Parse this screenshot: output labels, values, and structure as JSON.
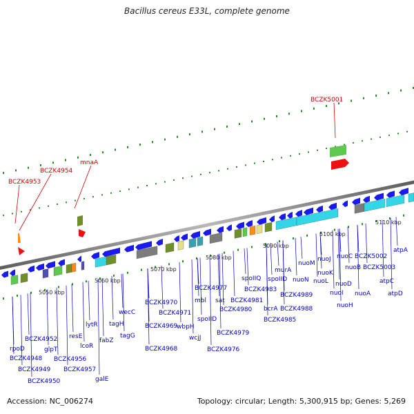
{
  "title": "Bacillus cereus E33L, complete genome",
  "footer": {
    "accession": "Accession: NC_006274",
    "meta": "Topology: circular; Length: 5,300,915 bp; Genes: 5,269"
  },
  "colors": {
    "backbone": "#8a8a8a",
    "ruler": "#228b22",
    "label_blue": "#0000cc",
    "label_red": "#cc0000",
    "gene_blue": "#1a1aee",
    "gene_cyan": "#33d6e6",
    "gene_green": "#5ec850",
    "gene_olive": "#6e8f2a",
    "gene_gray": "#7c7c7c",
    "gene_red": "#ee1111",
    "gene_orange": "#ff8c10",
    "gene_khaki": "#e4e08a",
    "gene_teal": "#3aa0b0",
    "gene_purple": "#5050b0"
  },
  "ruler": [
    "5050 kbp",
    "5060 kbp",
    "5070 kbp",
    "5080 kbp",
    "5090 kbp",
    "5100 kbp",
    "5110 kbp"
  ],
  "fwd_labels": [
    "BCZK4953",
    "BCZK4954",
    "mnaA",
    "BCZK5001"
  ],
  "rev_labels": [
    "rpoD",
    "BCZK4948",
    "BCZK4949",
    "BCZK4950",
    "BCZK4952",
    "glpT",
    "BCZK4956",
    "BCZK4957",
    "galE",
    "resE",
    "lcoR",
    "lytR",
    "fabZ",
    "tagH",
    "tagG",
    "wecC",
    "BCZK4968",
    "BCZK4969",
    "BCZK4970",
    "BCZK4971",
    "wbpH",
    "wcjJ",
    "mbl",
    "spoIID",
    "BCZK4976",
    "BCZK4977",
    "sat",
    "BCZK4979",
    "BCZK4980",
    "BCZK4981",
    "spoIIQ",
    "BCZK4983",
    "bcrA",
    "BCZK4985",
    "murA",
    "spoIID",
    "BCZK4988",
    "BCZK4989",
    "nuoM",
    "nuoN",
    "nuoJ",
    "nuoL",
    "nuoK",
    "nuoC",
    "nuoD",
    "nuoI",
    "nuoB",
    "nuoH",
    "nuoA",
    "BCZK5002",
    "BCZK5003",
    "atpC",
    "atpD",
    "atpA"
  ]
}
